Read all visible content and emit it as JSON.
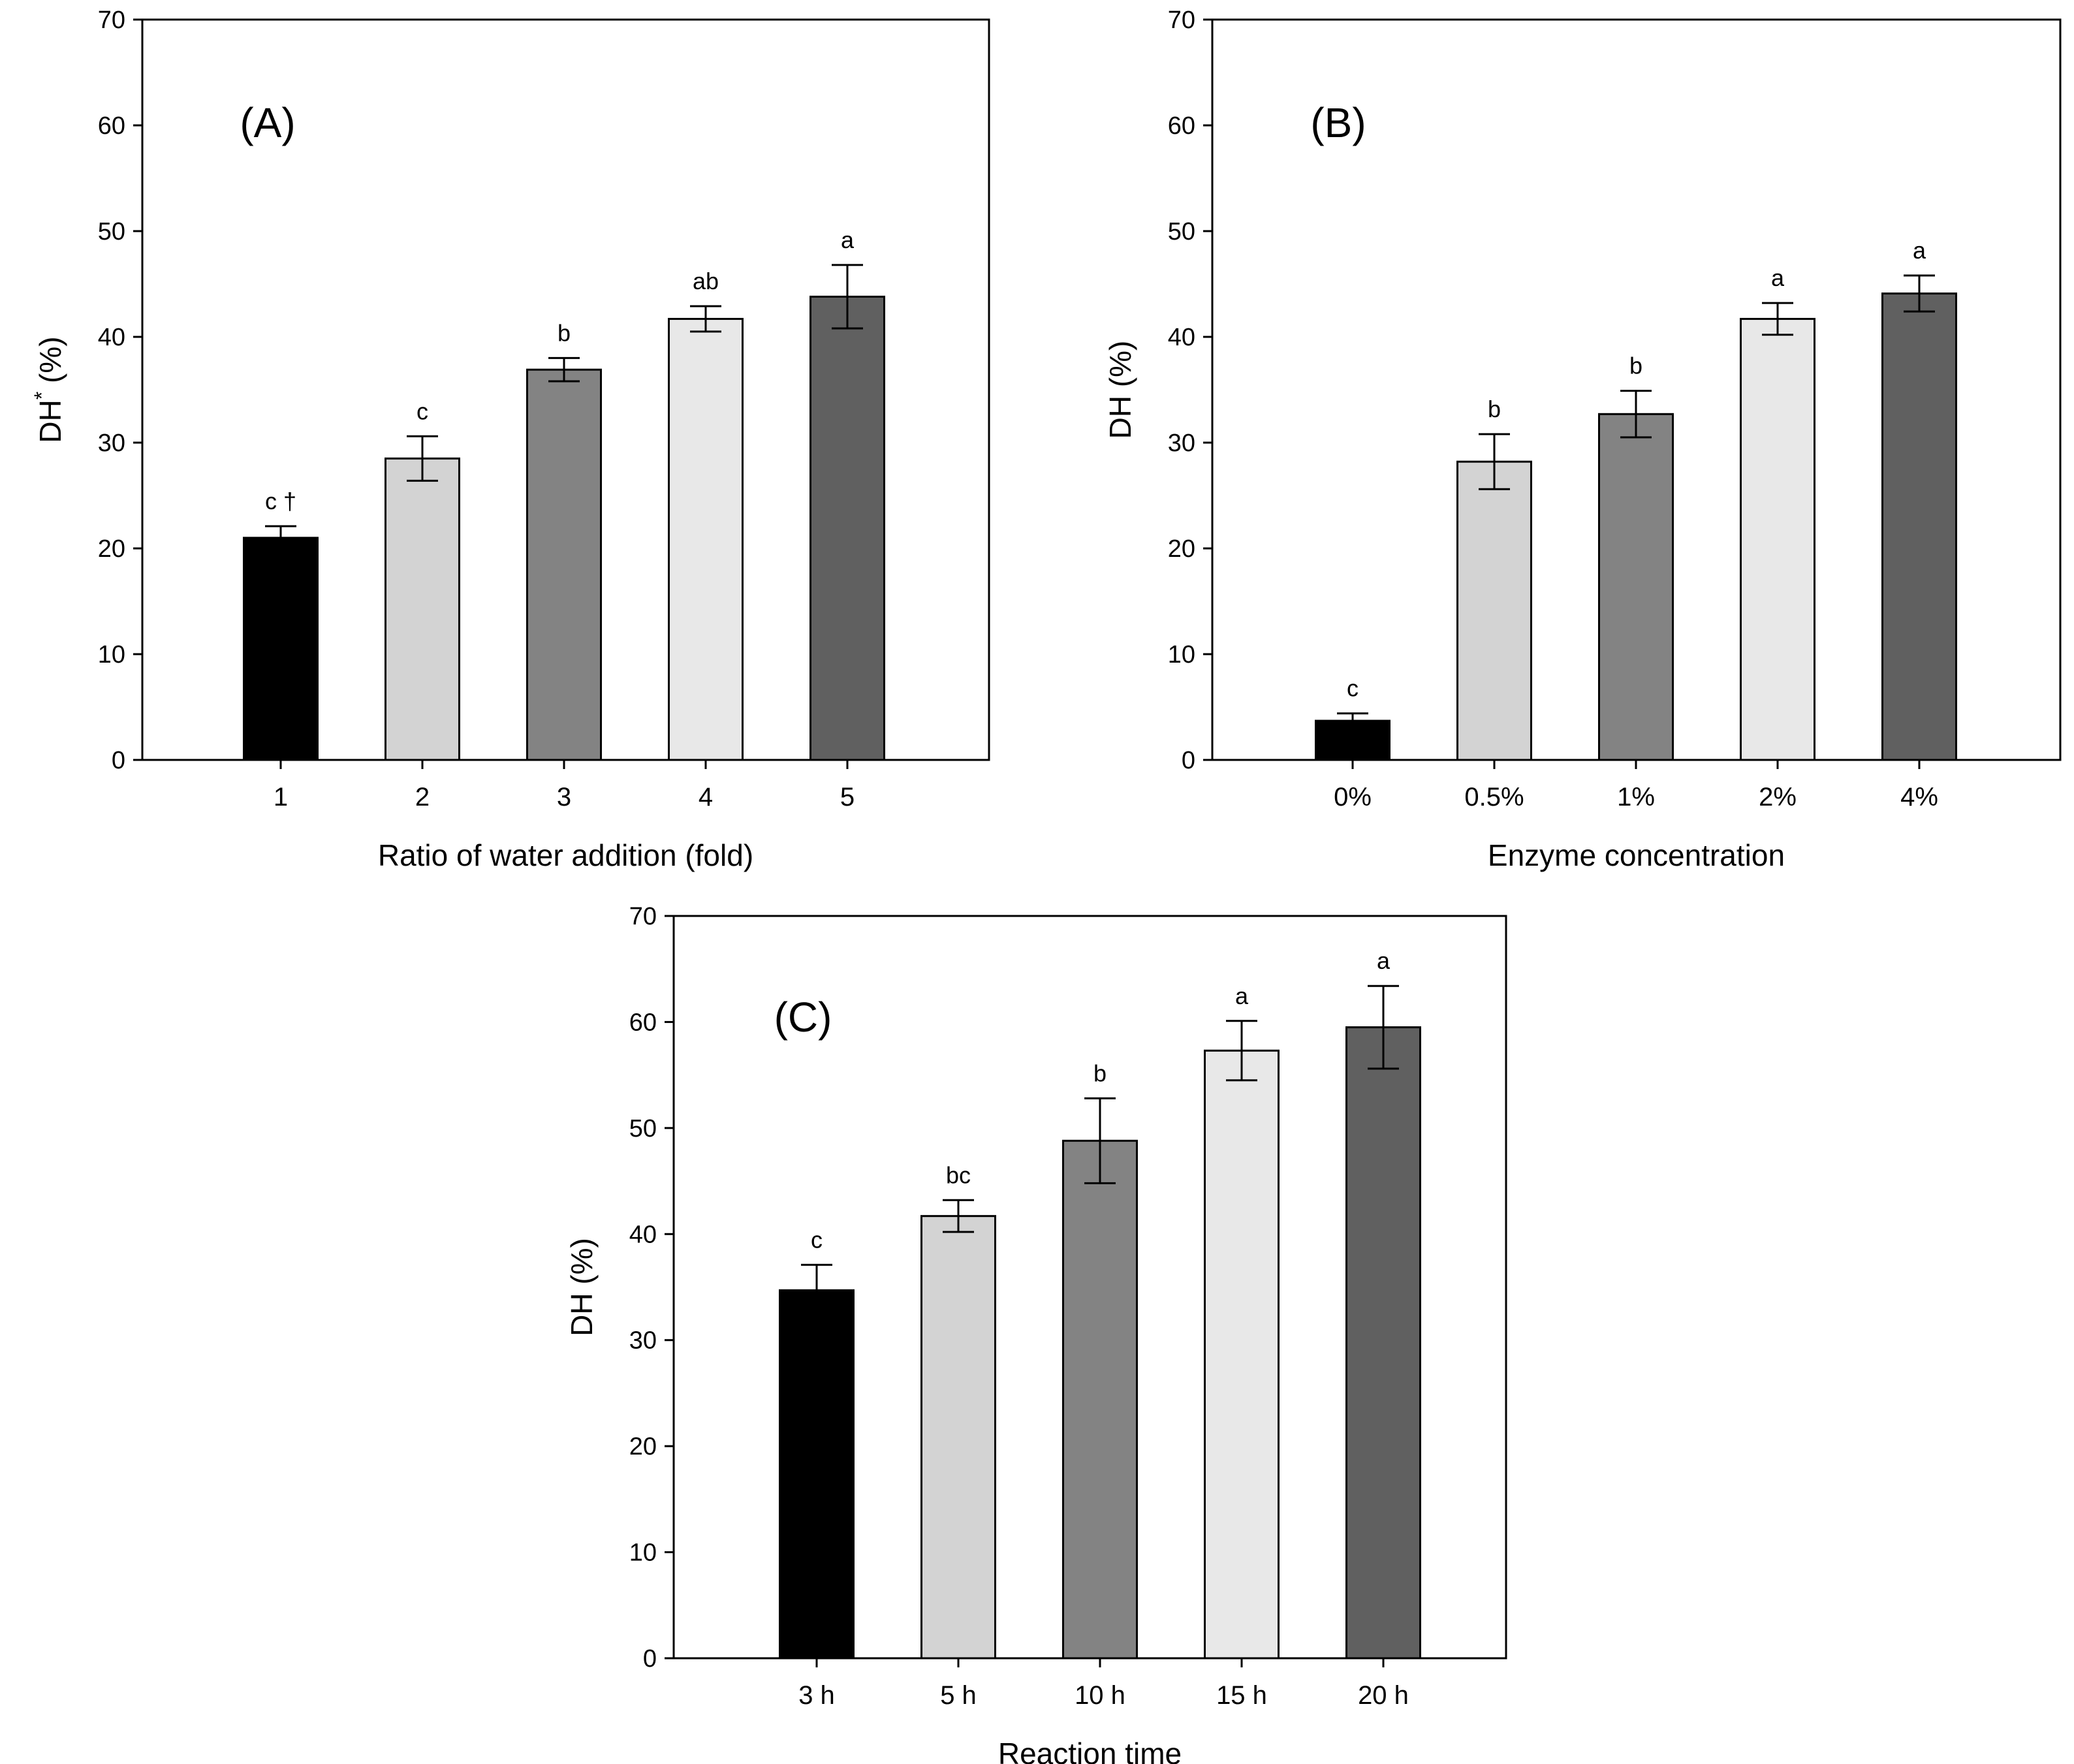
{
  "colors": {
    "bar_fills": [
      "#000000",
      "#d3d3d3",
      "#838383",
      "#e8e8e8",
      "#606060"
    ],
    "bar_stroke": "#000000",
    "axis": "#000000",
    "background": "#ffffff"
  },
  "chart_data": [
    {
      "type": "bar",
      "panel": "(A)",
      "title": "",
      "xlabel": "Ratio of water addition (fold)",
      "ylabel_main": "DH",
      "ylabel_superscript": "*",
      "ylabel_suffix": " (%)",
      "ylim": [
        0,
        70
      ],
      "yticks": [
        0,
        10,
        20,
        30,
        40,
        50,
        60,
        70
      ],
      "categories": [
        "1",
        "2",
        "3",
        "4",
        "5"
      ],
      "values": [
        21.0,
        28.5,
        36.9,
        41.7,
        43.8
      ],
      "errors": [
        1.1,
        2.1,
        1.1,
        1.2,
        3.0
      ],
      "significance": [
        "c",
        "c",
        "b",
        "ab",
        "a"
      ],
      "significance_marks": [
        "†",
        "",
        "",
        "",
        ""
      ]
    },
    {
      "type": "bar",
      "panel": "(B)",
      "title": "",
      "xlabel": "Enzyme concentration",
      "ylabel_main": "DH",
      "ylabel_superscript": "",
      "ylabel_suffix": " (%)",
      "ylim": [
        0,
        70
      ],
      "yticks": [
        0,
        10,
        20,
        30,
        40,
        50,
        60,
        70
      ],
      "categories": [
        "0%",
        "0.5%",
        "1%",
        "2%",
        "4%"
      ],
      "values": [
        3.7,
        28.2,
        32.7,
        41.7,
        44.1
      ],
      "errors": [
        0.7,
        2.6,
        2.2,
        1.5,
        1.7
      ],
      "significance": [
        "c",
        "b",
        "b",
        "a",
        "a"
      ],
      "significance_marks": [
        "",
        "",
        "",
        "",
        ""
      ]
    },
    {
      "type": "bar",
      "panel": "(C)",
      "title": "",
      "xlabel": "Reaction time",
      "ylabel_main": "DH",
      "ylabel_superscript": "",
      "ylabel_suffix": " (%)",
      "ylim": [
        0,
        70
      ],
      "yticks": [
        0,
        10,
        20,
        30,
        40,
        50,
        60,
        70
      ],
      "categories": [
        "3 h",
        "5 h",
        "10 h",
        "15 h",
        "20 h"
      ],
      "values": [
        34.7,
        41.7,
        48.8,
        57.3,
        59.5
      ],
      "errors": [
        2.4,
        1.5,
        4.0,
        2.8,
        3.9
      ],
      "significance": [
        "c",
        "bc",
        "b",
        "a",
        "a"
      ],
      "significance_marks": [
        "",
        "",
        "",
        "",
        ""
      ]
    }
  ]
}
